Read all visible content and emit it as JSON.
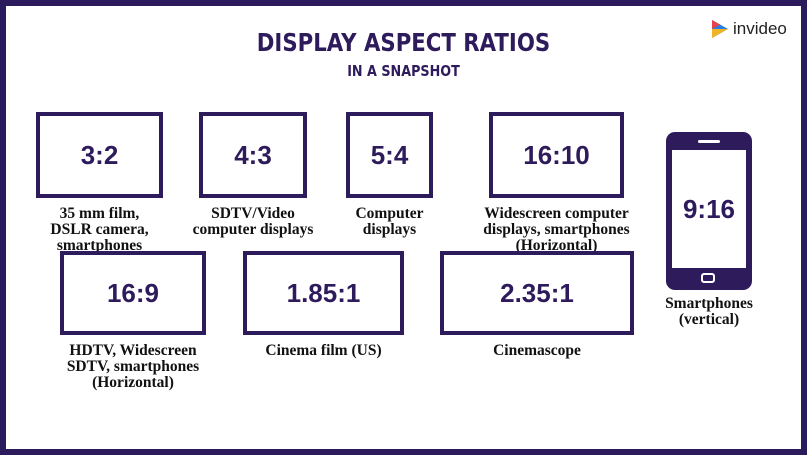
{
  "header": {
    "title": "DISPLAY ASPECT RATIOS",
    "subtitle": "IN A SNAPSHOT"
  },
  "logo": {
    "text": "invideo"
  },
  "items": [
    {
      "ratio": "3:2",
      "description": [
        "35 mm film,",
        "DSLR camera,",
        "smartphones"
      ]
    },
    {
      "ratio": "4:3",
      "description": [
        "SDTV/Video",
        "computer displays"
      ]
    },
    {
      "ratio": "5:4",
      "description": [
        "Computer",
        "displays"
      ]
    },
    {
      "ratio": "16:10",
      "description": [
        "Widescreen computer",
        "displays, smartphones",
        "(Horizontal)"
      ]
    },
    {
      "ratio": "16:9",
      "description": [
        "HDTV, Widescreen",
        "SDTV, smartphones",
        "(Horizontal)"
      ]
    },
    {
      "ratio": "1.85:1",
      "description": [
        "Cinema film (US)"
      ]
    },
    {
      "ratio": "2.35:1",
      "description": [
        "Cinemascope"
      ]
    },
    {
      "ratio": "9:16",
      "description": [
        "Smartphones",
        "(vertical)"
      ]
    }
  ]
}
